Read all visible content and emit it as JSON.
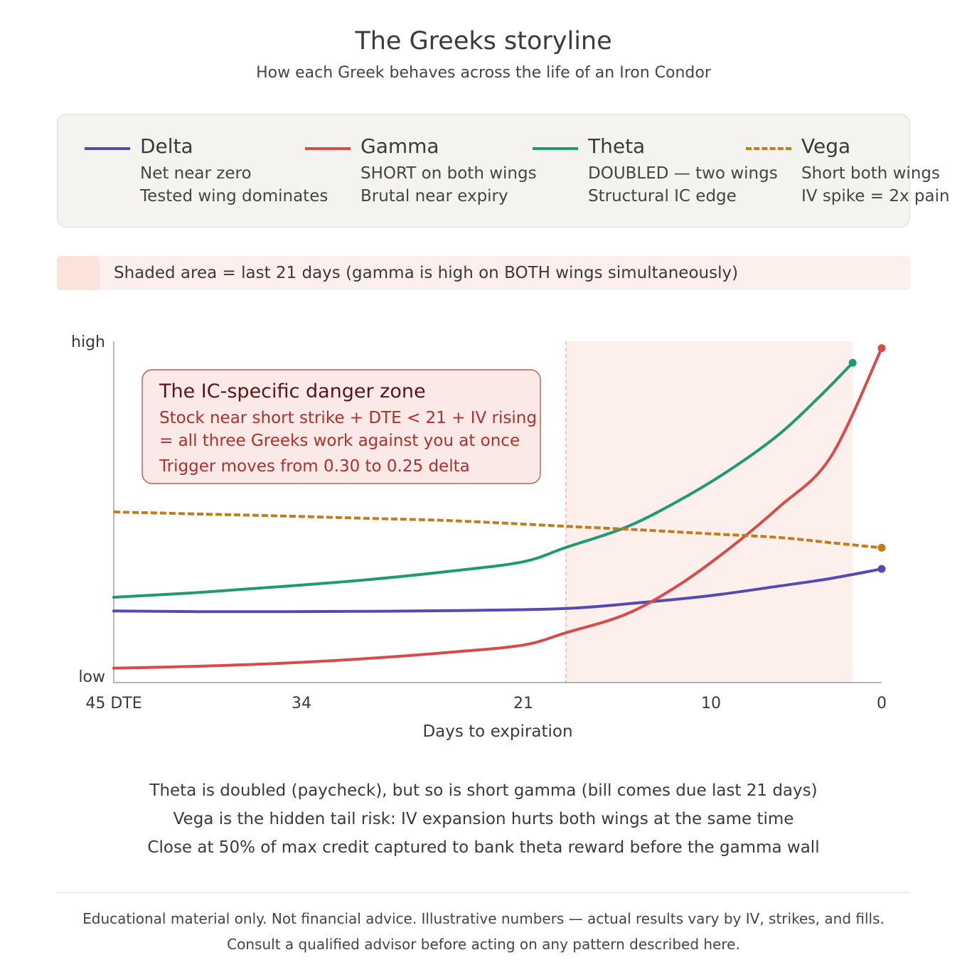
{
  "title": "The Greeks storyline",
  "subtitle": "How each Greek behaves across the life of an Iron Condor",
  "legend": [
    {
      "name": "Delta",
      "color": "#5549b4",
      "style": "solid",
      "lines": [
        "Net near zero",
        "Tested wing dominates"
      ]
    },
    {
      "name": "Gamma",
      "color": "#d94a4a",
      "style": "solid",
      "lines": [
        "SHORT on both wings",
        "Brutal near expiry"
      ]
    },
    {
      "name": "Theta",
      "color": "#1f9a73",
      "style": "solid",
      "lines": [
        "DOUBLED — two wings",
        "Structural IC edge"
      ]
    },
    {
      "name": "Vega",
      "color": "#c47b1c",
      "style": "dashed",
      "lines": [
        "Short both wings",
        "IV spike = 2x pain"
      ]
    }
  ],
  "shade_note": "Shaded area = last 21 days (gamma is high on BOTH wings simultaneously)",
  "shade_colors": {
    "banner": "#fdf0ec",
    "swatch": "#fbe3dc",
    "region": "#fdf0ec",
    "boundary": "#e9a9a2"
  },
  "annotation": {
    "title": "The IC-specific danger zone",
    "lines": [
      "Stock near short strike + DTE < 21 + IV rising",
      "= all three Greeks work against you at once",
      "Trigger moves from 0.30 to 0.25 delta"
    ],
    "fill": "#fbe9e7",
    "border": "#b8423a",
    "title_color": "#5a1515",
    "text_color": "#b0302c"
  },
  "chart_data": {
    "type": "line",
    "xlabel": "Days to expiration",
    "ylabel_high": "high",
    "ylabel_low": "low",
    "xlim": [
      45,
      0
    ],
    "ylim": [
      0,
      1
    ],
    "x_ticks": [
      45,
      34,
      21,
      10,
      0
    ],
    "x_tick_labels": [
      "45 DTE",
      "34",
      "21",
      "10",
      "0"
    ],
    "shaded_region": {
      "from_dte": 18.5,
      "to_dte": 1.7
    },
    "series": [
      {
        "name": "Delta",
        "color": "#5549b4",
        "dash": false,
        "points": [
          [
            45,
            0.21
          ],
          [
            40,
            0.208
          ],
          [
            35,
            0.208
          ],
          [
            30,
            0.209
          ],
          [
            25,
            0.211
          ],
          [
            18.5,
            0.217
          ],
          [
            14,
            0.235
          ],
          [
            10,
            0.255
          ],
          [
            6,
            0.283
          ],
          [
            3,
            0.305
          ],
          [
            0,
            0.333
          ]
        ],
        "end_marker": [
          0,
          0.333
        ]
      },
      {
        "name": "Gamma",
        "color": "#d94a4a",
        "dash": false,
        "points": [
          [
            45,
            0.042
          ],
          [
            40,
            0.048
          ],
          [
            35,
            0.057
          ],
          [
            30,
            0.071
          ],
          [
            25,
            0.09
          ],
          [
            21,
            0.11
          ],
          [
            18.5,
            0.146
          ],
          [
            15,
            0.2
          ],
          [
            12,
            0.282
          ],
          [
            9,
            0.39
          ],
          [
            6,
            0.515
          ],
          [
            3,
            0.66
          ],
          [
            0,
            0.98
          ]
        ],
        "end_marker": [
          0,
          0.98
        ]
      },
      {
        "name": "Theta",
        "color": "#1f9a73",
        "dash": false,
        "points": [
          [
            45,
            0.25
          ],
          [
            40,
            0.264
          ],
          [
            35,
            0.282
          ],
          [
            30,
            0.302
          ],
          [
            25,
            0.328
          ],
          [
            21,
            0.354
          ],
          [
            18.5,
            0.396
          ],
          [
            15,
            0.455
          ],
          [
            12,
            0.53
          ],
          [
            9,
            0.62
          ],
          [
            6,
            0.728
          ],
          [
            3.5,
            0.845
          ],
          [
            1.7,
            0.937
          ]
        ],
        "end_marker": [
          1.7,
          0.937
        ]
      },
      {
        "name": "Vega",
        "color": "#c47b1c",
        "dash": true,
        "points": [
          [
            45,
            0.5
          ],
          [
            40,
            0.494
          ],
          [
            35,
            0.488
          ],
          [
            30,
            0.481
          ],
          [
            25,
            0.474
          ],
          [
            18.5,
            0.458
          ],
          [
            14,
            0.447
          ],
          [
            10,
            0.436
          ],
          [
            6,
            0.425
          ],
          [
            3,
            0.41
          ],
          [
            0,
            0.395
          ]
        ],
        "end_marker": [
          0,
          0.395
        ]
      }
    ]
  },
  "notes": [
    "Theta is doubled (paycheck), but so is short gamma (bill comes due last 21 days)",
    "Vega is the hidden tail risk: IV expansion hurts both wings at the same time",
    "Close at 50% of max credit captured to bank theta reward before the gamma wall"
  ],
  "disclaimer": [
    "Educational material only. Not financial advice. Illustrative numbers — actual results vary by IV, strikes, and fills.",
    "Consult a qualified advisor before acting on any pattern described here."
  ]
}
